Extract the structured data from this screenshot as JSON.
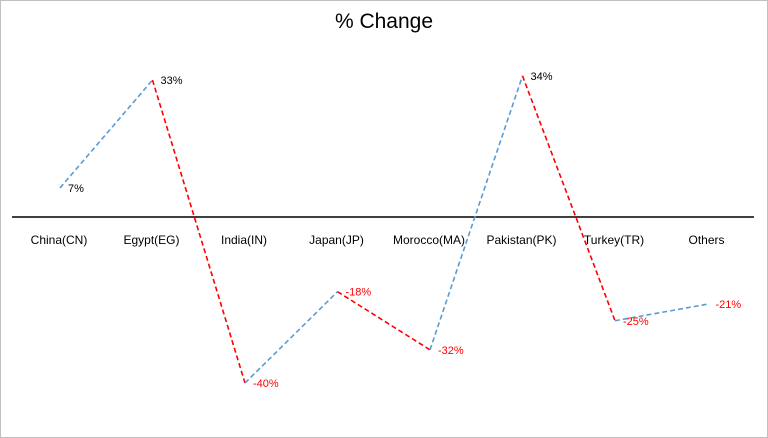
{
  "chart_data": {
    "type": "line",
    "title": "% Change",
    "categories": [
      "China(CN)",
      "Egypt(EG)",
      "India(IN)",
      "Japan(JP)",
      "Morocco(MA)",
      "Pakistan(PK)",
      "Turkey(TR)",
      "Others"
    ],
    "values": [
      7,
      33,
      -40,
      -18,
      -32,
      34,
      -25,
      -21
    ],
    "data_labels": [
      "7%",
      "33%",
      "-40%",
      "-18%",
      "-32%",
      "34%",
      "-25%",
      "-21%"
    ],
    "line_style": "dashed",
    "segment_rule": "segment colored blue when rising, red when falling",
    "colors": {
      "rising": "#5b9bd5",
      "falling": "#ff0000",
      "positive_label": "#000000",
      "negative_label": "#ff0000",
      "axis": "#000000"
    },
    "grid": false,
    "legend": "none",
    "xlabel": "",
    "ylabel": ""
  }
}
